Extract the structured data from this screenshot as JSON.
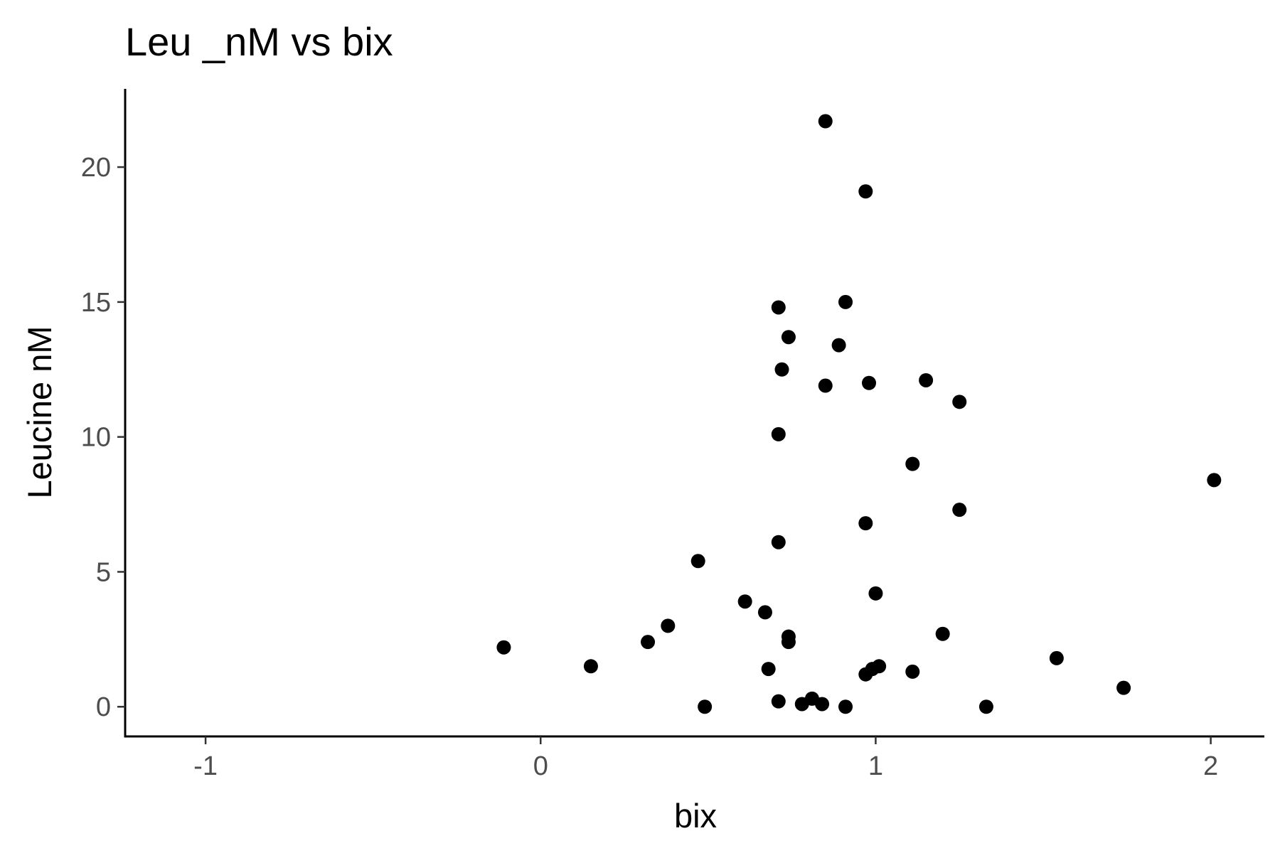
{
  "chart_data": {
    "type": "scatter",
    "title": "Leu _nM vs bix",
    "xlabel": "bix",
    "ylabel": "Leucine nM",
    "xlim": [
      -1.24,
      2.16
    ],
    "ylim": [
      -1.1,
      22.9
    ],
    "x_ticks": [
      -1,
      0,
      1,
      2
    ],
    "x_tick_labels": [
      "-1",
      "0",
      "1",
      "2"
    ],
    "y_ticks": [
      0,
      5,
      10,
      15,
      20
    ],
    "y_tick_labels": [
      "0",
      "5",
      "10",
      "15",
      "20"
    ],
    "grid": false,
    "legend": "none",
    "point_color": "#000000",
    "points": [
      {
        "x": 0.85,
        "y": 21.7
      },
      {
        "x": 0.97,
        "y": 19.1
      },
      {
        "x": 0.91,
        "y": 15.0
      },
      {
        "x": 0.71,
        "y": 14.8
      },
      {
        "x": 0.74,
        "y": 13.7
      },
      {
        "x": 0.89,
        "y": 13.4
      },
      {
        "x": 0.72,
        "y": 12.5
      },
      {
        "x": 1.15,
        "y": 12.1
      },
      {
        "x": 0.85,
        "y": 11.9
      },
      {
        "x": 0.98,
        "y": 12.0
      },
      {
        "x": 1.25,
        "y": 11.3
      },
      {
        "x": 0.71,
        "y": 10.1
      },
      {
        "x": 1.11,
        "y": 9.0
      },
      {
        "x": 2.01,
        "y": 8.4
      },
      {
        "x": 1.25,
        "y": 7.3
      },
      {
        "x": 0.97,
        "y": 6.8
      },
      {
        "x": 0.71,
        "y": 6.1
      },
      {
        "x": 0.47,
        "y": 5.4
      },
      {
        "x": 1.0,
        "y": 4.2
      },
      {
        "x": 0.61,
        "y": 3.9
      },
      {
        "x": 0.67,
        "y": 3.5
      },
      {
        "x": 0.38,
        "y": 3.0
      },
      {
        "x": 1.2,
        "y": 2.7
      },
      {
        "x": 0.74,
        "y": 2.6
      },
      {
        "x": 0.32,
        "y": 2.4
      },
      {
        "x": 0.74,
        "y": 2.4
      },
      {
        "x": -0.11,
        "y": 2.2
      },
      {
        "x": 1.54,
        "y": 1.8
      },
      {
        "x": 0.15,
        "y": 1.5
      },
      {
        "x": 1.01,
        "y": 1.5
      },
      {
        "x": 0.99,
        "y": 1.4
      },
      {
        "x": 0.68,
        "y": 1.4
      },
      {
        "x": 1.11,
        "y": 1.3
      },
      {
        "x": 0.97,
        "y": 1.2
      },
      {
        "x": 1.74,
        "y": 0.7
      },
      {
        "x": 0.81,
        "y": 0.3
      },
      {
        "x": 0.71,
        "y": 0.2
      },
      {
        "x": 0.84,
        "y": 0.1
      },
      {
        "x": 0.78,
        "y": 0.1
      },
      {
        "x": 0.49,
        "y": 0.0
      },
      {
        "x": 1.33,
        "y": 0.0
      },
      {
        "x": 0.91,
        "y": 0.0
      }
    ]
  }
}
